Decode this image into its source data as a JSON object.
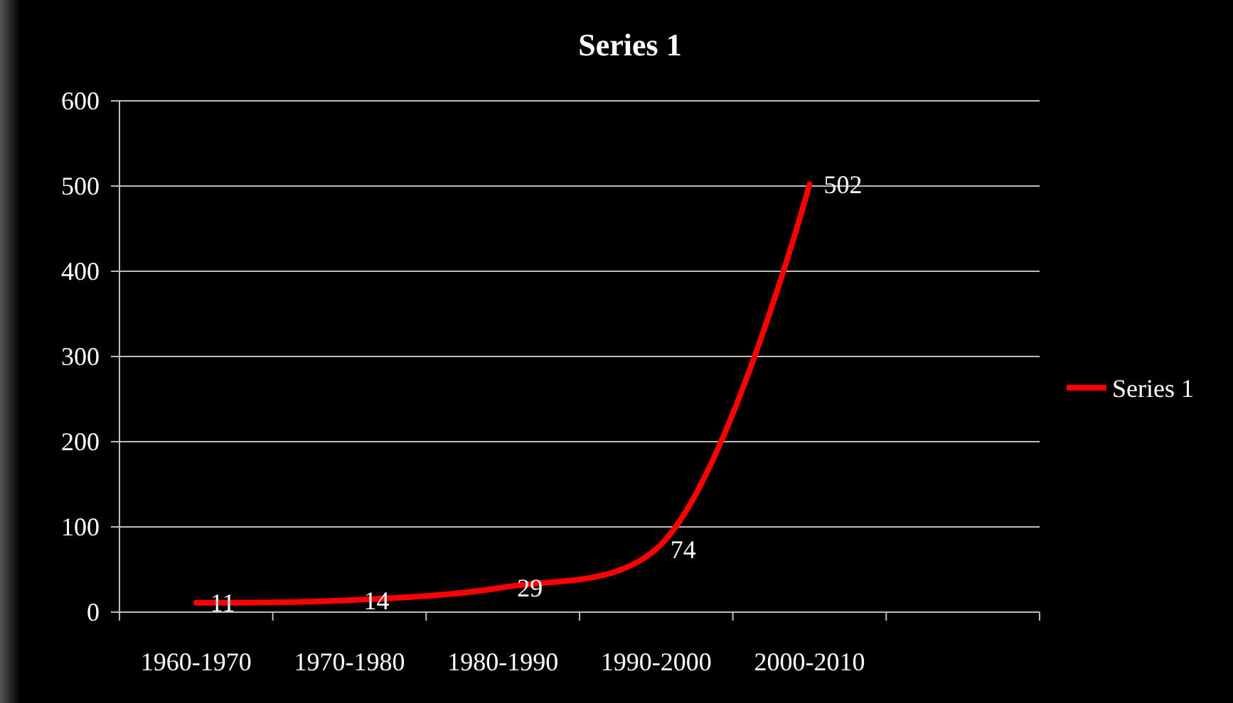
{
  "chart_data": {
    "type": "line",
    "title": "Series 1",
    "categories": [
      "1960-1970",
      "1970-1980",
      "1980-1990",
      "1990-2000",
      "2000-2010",
      null
    ],
    "series": [
      {
        "name": "Series 1",
        "color": "#ff0000",
        "values": [
          11,
          14,
          29,
          74,
          502,
          null
        ]
      }
    ],
    "ylim": [
      0,
      600
    ],
    "yticks": [
      0,
      100,
      200,
      300,
      400,
      500,
      600
    ],
    "grid": "y",
    "legend": "right",
    "data_labels": true,
    "marker": "none",
    "line_style": "solid"
  }
}
